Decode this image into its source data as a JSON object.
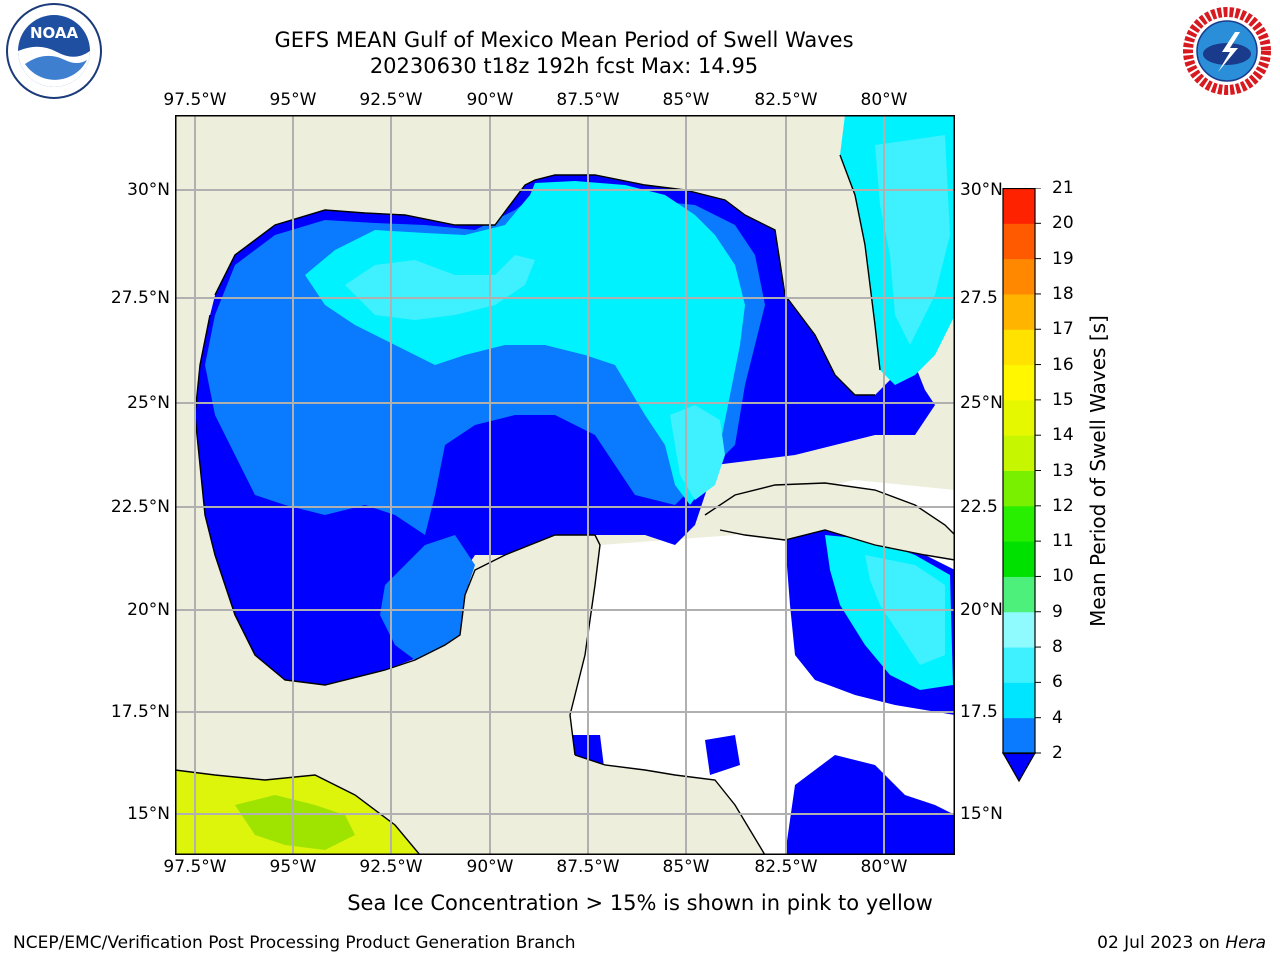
{
  "header": {
    "title_line1": "GEFS MEAN Gulf of Mexico Mean Period of Swell Waves",
    "title_line2": "20230630 t18z 192h fcst   Max: 14.95"
  },
  "map": {
    "lon_labels": [
      "97.5°W",
      "95°W",
      "92.5°W",
      "90°W",
      "87.5°W",
      "85°W",
      "82.5°W",
      "80°W"
    ],
    "lat_labels_left": [
      "30°N",
      "27.5°N",
      "25°N",
      "22.5°N",
      "20°N",
      "17.5°N",
      "15°N"
    ],
    "lat_labels_right": [
      "30°N",
      "27.5",
      "25°N",
      "22.5",
      "20°N",
      "17.5",
      "15°N"
    ]
  },
  "colorbar": {
    "label": "Mean Period of Swell Waves [s]",
    "ticks": [
      "2",
      "4",
      "6",
      "8",
      "9",
      "10",
      "11",
      "12",
      "13",
      "14",
      "15",
      "16",
      "17",
      "18",
      "19",
      "20",
      "21"
    ],
    "colors": [
      "#0a7bff",
      "#00e5ff",
      "#3ff0ff",
      "#8ffbff",
      "#4cf07a",
      "#00e100",
      "#28ee00",
      "#79f000",
      "#c6f700",
      "#e6f800",
      "#fff700",
      "#ffe200",
      "#ffb400",
      "#ff8800",
      "#ff5a00",
      "#ff2200",
      "#ff0000"
    ],
    "under_color": "#0000ff"
  },
  "notes": {
    "sea_ice": "Sea Ice Concentration > 15% is shown in pink to yellow"
  },
  "footer": {
    "left": "NCEP/EMC/Verification Post Processing Product Generation Branch",
    "date": "02 Jul 2023",
    "on": "on",
    "machine": "Hera"
  },
  "logos": {
    "noaa_text": "NOAA",
    "nws_text": "NATIONAL WEATHER SERVICE"
  }
}
